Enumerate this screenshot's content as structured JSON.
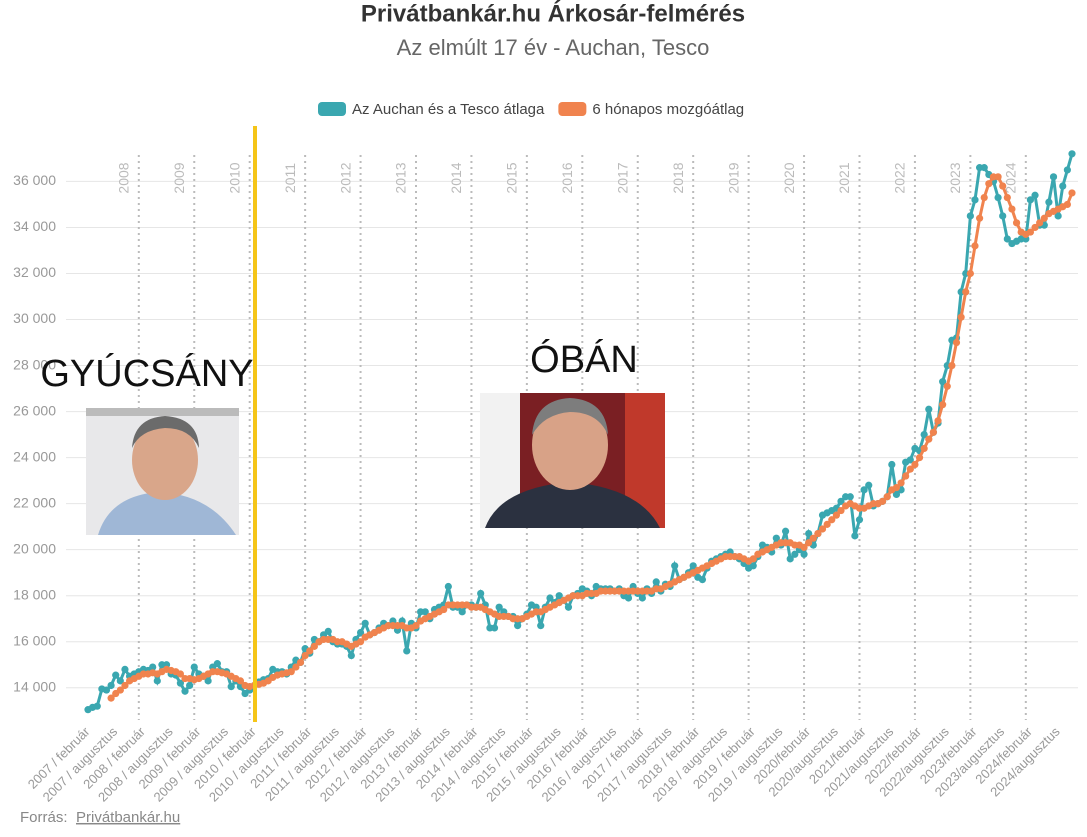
{
  "chart_data": {
    "type": "line",
    "title": "Privátbankár.hu Árkosár-felmérés",
    "subtitle": "Az elmúlt 17 év - Auchan, Tesco",
    "categories": [
      "2007 / február",
      null,
      null,
      null,
      null,
      null,
      "2007 / augusztus",
      null,
      null,
      null,
      null,
      null,
      "2008 / február",
      null,
      null,
      null,
      null,
      null,
      "2008 / augusztus",
      null,
      null,
      null,
      null,
      null,
      "2009 / február",
      null,
      null,
      null,
      null,
      null,
      "2009 / augusztus",
      null,
      null,
      null,
      null,
      null,
      "2010 / február",
      null,
      null,
      null,
      null,
      null,
      "2010 / augusztus",
      null,
      null,
      null,
      null,
      null,
      "2011 / február",
      null,
      null,
      null,
      null,
      null,
      "2011 / augusztus",
      null,
      null,
      null,
      null,
      null,
      "2012 / február",
      null,
      null,
      null,
      null,
      null,
      "2012 / augusztus",
      null,
      null,
      null,
      null,
      null,
      "2013 / február",
      null,
      null,
      null,
      null,
      null,
      "2013 / augusztus",
      null,
      null,
      null,
      null,
      null,
      "2014 / február",
      null,
      null,
      null,
      null,
      null,
      "2014 / augusztus",
      null,
      null,
      null,
      null,
      null,
      "2015 / február",
      null,
      null,
      null,
      null,
      null,
      "2015 / augusztus",
      null,
      null,
      null,
      null,
      null,
      "2016 / február",
      null,
      null,
      null,
      null,
      null,
      "2016 / augusztus",
      null,
      null,
      null,
      null,
      null,
      "2017 / február",
      null,
      null,
      null,
      null,
      null,
      "2017 / augusztus",
      null,
      null,
      null,
      null,
      null,
      "2018 / február",
      null,
      null,
      null,
      null,
      null,
      "2018 / augusztus",
      null,
      null,
      null,
      null,
      null,
      "2019 / február",
      null,
      null,
      null,
      null,
      null,
      "2019 / augusztus",
      null,
      null,
      null,
      null,
      null,
      "2020/február",
      null,
      null,
      null,
      null,
      null,
      "2020/augusztus",
      null,
      null,
      null,
      null,
      null,
      "2021/február",
      null,
      null,
      null,
      null,
      null,
      "2021/augusztus",
      null,
      null,
      null,
      null,
      null,
      "2022/február",
      null,
      null,
      null,
      null,
      null,
      "2022/augusztus",
      null,
      null,
      null,
      null,
      null,
      "2023/február",
      null,
      null,
      null,
      null,
      null,
      "2023/augusztus",
      null,
      null,
      null,
      null,
      null,
      "2024/február",
      null,
      null,
      null,
      null,
      null,
      "2024/augusztus",
      null,
      null,
      null
    ],
    "series": [
      {
        "name": "Az Auchan és a Tesco átlaga",
        "color": "#3aa7b0",
        "values": [
          13050,
          13150,
          13200,
          13950,
          13900,
          14100,
          14550,
          14300,
          14800,
          14500,
          14600,
          14700,
          14800,
          14750,
          14900,
          14300,
          15000,
          15000,
          14600,
          14550,
          14200,
          13850,
          14100,
          14900,
          14600,
          14500,
          14300,
          14900,
          15050,
          14700,
          14700,
          14050,
          14300,
          14050,
          13750,
          13900,
          14100,
          14250,
          14350,
          14400,
          14800,
          14700,
          14700,
          14600,
          14900,
          15200,
          15100,
          15700,
          15500,
          16100,
          16000,
          16300,
          16450,
          16000,
          15900,
          15900,
          15800,
          15400,
          16100,
          16400,
          16800,
          16300,
          16400,
          16600,
          16800,
          16700,
          16900,
          16500,
          16900,
          15600,
          16800,
          16600,
          17300,
          17300,
          17000,
          17400,
          17500,
          17600,
          18400,
          17500,
          17500,
          17300,
          17600,
          17600,
          17500,
          18100,
          17600,
          16600,
          16600,
          17500,
          17300,
          17100,
          17100,
          16700,
          17000,
          17200,
          17600,
          17500,
          16700,
          17500,
          17900,
          17700,
          18000,
          17800,
          17500,
          18000,
          18100,
          18300,
          18200,
          18000,
          18400,
          18300,
          18300,
          18300,
          18200,
          18300,
          18000,
          17900,
          18400,
          18100,
          17900,
          18300,
          18100,
          18600,
          18200,
          18500,
          18400,
          19300,
          18700,
          18800,
          19000,
          19300,
          18800,
          18700,
          19200,
          19500,
          19600,
          19700,
          19800,
          19900,
          19700,
          19600,
          19400,
          19200,
          19300,
          19700,
          20200,
          20100,
          19900,
          20500,
          20200,
          20800,
          19600,
          19800,
          20000,
          19800,
          20700,
          20200,
          20700,
          21500,
          21600,
          21700,
          21800,
          22100,
          22300,
          22300,
          20600,
          21300,
          22600,
          22800,
          21900,
          22000,
          22100,
          22300,
          23700,
          22400,
          22600,
          23800,
          23900,
          24400,
          24300,
          25000,
          26100,
          25100,
          25500,
          27300,
          28000,
          29100,
          29200,
          31200,
          32000,
          34500,
          35200,
          36600,
          36600,
          36300,
          36000,
          35300,
          34500,
          33500,
          33300,
          33400,
          33500,
          33500,
          35200,
          35400,
          34100,
          34100,
          35100,
          36200,
          34500,
          35800,
          36500,
          37200
        ]
      },
      {
        "name": "6 hónapos mozgóátlag",
        "color": "#f0834e",
        "values": [
          null,
          null,
          null,
          null,
          null,
          13550,
          13750,
          13900,
          14100,
          14300,
          14400,
          14500,
          14600,
          14600,
          14650,
          14600,
          14700,
          14800,
          14750,
          14700,
          14600,
          14400,
          14400,
          14350,
          14400,
          14500,
          14600,
          14700,
          14700,
          14650,
          14600,
          14500,
          14400,
          14300,
          14100,
          14050,
          14100,
          14150,
          14200,
          14300,
          14450,
          14550,
          14600,
          14650,
          14700,
          14900,
          15100,
          15400,
          15600,
          15800,
          16000,
          16100,
          16100,
          16100,
          16000,
          16000,
          15900,
          15800,
          15900,
          16000,
          16200,
          16300,
          16400,
          16500,
          16600,
          16700,
          16700,
          16700,
          16700,
          16600,
          16600,
          16700,
          16900,
          17000,
          17100,
          17200,
          17300,
          17400,
          17600,
          17600,
          17600,
          17600,
          17600,
          17500,
          17500,
          17500,
          17400,
          17300,
          17200,
          17100,
          17100,
          17100,
          17000,
          17000,
          17000,
          17100,
          17200,
          17300,
          17300,
          17400,
          17500,
          17600,
          17700,
          17800,
          17900,
          18000,
          18000,
          18000,
          18100,
          18100,
          18100,
          18200,
          18200,
          18200,
          18200,
          18200,
          18200,
          18200,
          18200,
          18200,
          18200,
          18200,
          18200,
          18300,
          18300,
          18400,
          18500,
          18600,
          18700,
          18800,
          18900,
          19000,
          19100,
          19200,
          19300,
          19400,
          19500,
          19600,
          19700,
          19700,
          19700,
          19700,
          19600,
          19500,
          19600,
          19800,
          19900,
          20000,
          20100,
          20200,
          20300,
          20300,
          20300,
          20200,
          20200,
          20100,
          20300,
          20500,
          20700,
          20900,
          21100,
          21300,
          21500,
          21700,
          21900,
          22000,
          21900,
          21800,
          21800,
          21900,
          22000,
          22000,
          22100,
          22300,
          22600,
          22700,
          22900,
          23200,
          23500,
          23700,
          24000,
          24400,
          24800,
          25100,
          25600,
          26300,
          27100,
          28000,
          29000,
          30100,
          31200,
          32000,
          33200,
          34400,
          35300,
          35900,
          36200,
          36200,
          35800,
          35300,
          34800,
          34200,
          33800,
          33700,
          33800,
          34000,
          34200,
          34400,
          34600,
          34700,
          34800,
          34900,
          35000,
          35500
        ]
      }
    ],
    "ylim": [
      12600,
      37800
    ],
    "yticks": [
      {
        "value": 14000,
        "label": "14 000"
      },
      {
        "value": 16000,
        "label": "16 000"
      },
      {
        "value": 18000,
        "label": "18 000"
      },
      {
        "value": 20000,
        "label": "20 000"
      },
      {
        "value": 22000,
        "label": "22 000"
      },
      {
        "value": 24000,
        "label": "24 000"
      },
      {
        "value": 26000,
        "label": "26 000"
      },
      {
        "value": 28000,
        "label": "28 000"
      },
      {
        "value": 30000,
        "label": "30 000"
      },
      {
        "value": 32000,
        "label": "32 000"
      },
      {
        "value": 34000,
        "label": "34 000"
      },
      {
        "value": 36000,
        "label": "36 000"
      }
    ],
    "grid": true,
    "year_labels": [
      "2008",
      "2009",
      "2010",
      "2011",
      "2012",
      "2013",
      "2014",
      "2015",
      "2016",
      "2017",
      "2018",
      "2019",
      "2020",
      "2021",
      "2022",
      "2023",
      "2024"
    ],
    "annotations": [
      "GYÚCSÁNY",
      "ÓBÁN"
    ],
    "source": {
      "label": "Forrás:",
      "link": "Privátbankár.hu"
    }
  }
}
